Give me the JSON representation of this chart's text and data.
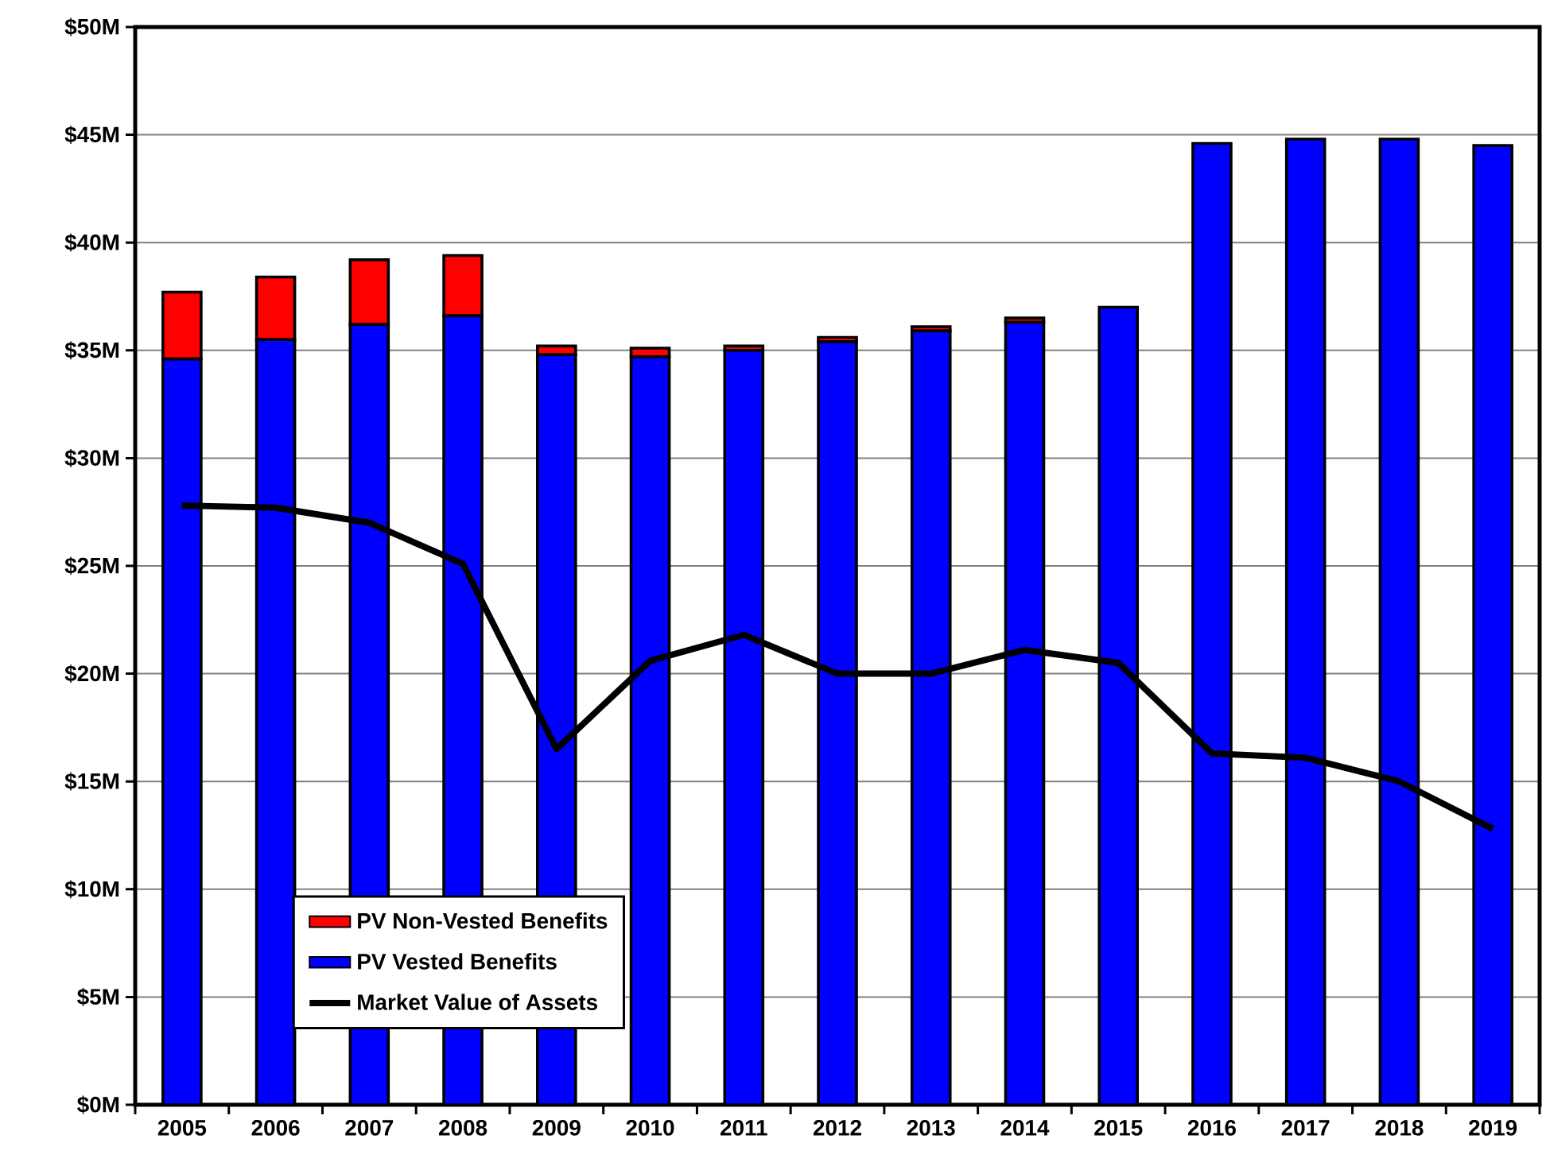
{
  "chart_data": {
    "type": "bar",
    "stacked": true,
    "categories": [
      "2005",
      "2006",
      "2007",
      "2008",
      "2009",
      "2010",
      "2011",
      "2012",
      "2013",
      "2014",
      "2015",
      "2016",
      "2017",
      "2018",
      "2019"
    ],
    "series": [
      {
        "name": "PV Vested Benefits",
        "color": "#0000ff",
        "values": [
          34.6,
          35.5,
          36.2,
          36.6,
          34.8,
          34.7,
          35.0,
          35.4,
          35.9,
          36.3,
          37.0,
          44.6,
          44.8,
          44.8,
          44.5
        ]
      },
      {
        "name": "PV Non-Vested Benefits",
        "color": "#ff0000",
        "values": [
          3.1,
          2.9,
          3.0,
          2.8,
          0.4,
          0.4,
          0.2,
          0.2,
          0.2,
          0.2,
          0,
          0,
          0,
          0,
          0
        ]
      },
      {
        "name": "Market Value of Assets",
        "type": "line",
        "color": "#000000",
        "values": [
          27.8,
          27.7,
          27.0,
          25.1,
          16.5,
          20.6,
          21.8,
          20.0,
          20.0,
          21.1,
          20.5,
          16.3,
          16.1,
          15.0,
          12.8
        ]
      }
    ],
    "ylim": [
      0,
      50
    ],
    "yticks": [
      {
        "value": 0,
        "label": "$0M"
      },
      {
        "value": 5,
        "label": "$5M"
      },
      {
        "value": 10,
        "label": "$10M"
      },
      {
        "value": 15,
        "label": "$15M"
      },
      {
        "value": 20,
        "label": "$20M"
      },
      {
        "value": 25,
        "label": "$25M"
      },
      {
        "value": 30,
        "label": "$30M"
      },
      {
        "value": 35,
        "label": "$35M"
      },
      {
        "value": 40,
        "label": "$40M"
      },
      {
        "value": 45,
        "label": "$45M"
      },
      {
        "value": 50,
        "label": "$50M"
      }
    ],
    "grid": "y",
    "legend": "bottom left",
    "marker": "none",
    "line_style": "solid"
  }
}
